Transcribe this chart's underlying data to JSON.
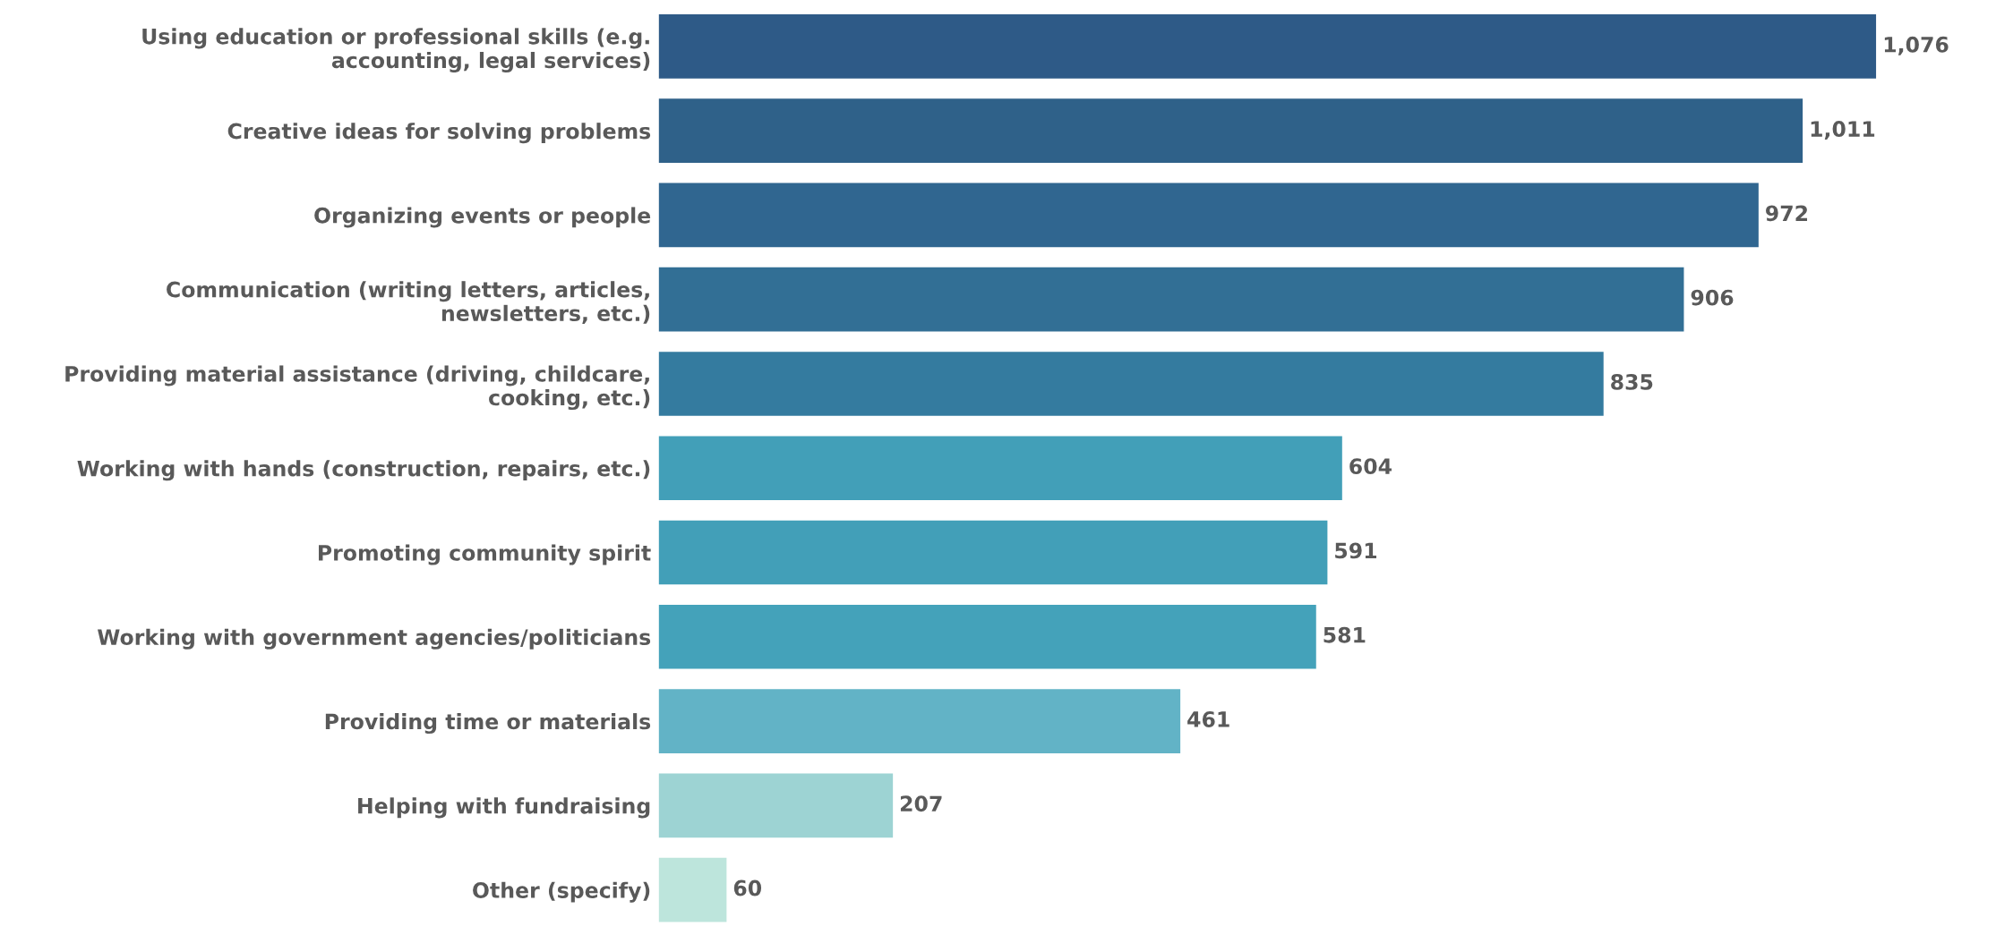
{
  "chart_data": {
    "type": "bar",
    "orientation": "horizontal",
    "categories": [
      "Using education or professional skills (e.g.\naccounting, legal services)",
      "Creative ideas for solving problems",
      "Organizing events or people",
      "Communication (writing letters, articles,\nnewsletters, etc.)",
      "Providing material assistance (driving, childcare,\ncooking, etc.)",
      "Working with hands (construction, repairs, etc.)",
      "Promoting community spirit",
      "Working with government agencies/politicians",
      "Providing time or materials",
      "Helping with fundraising",
      "Other (specify)"
    ],
    "values": [
      1076,
      1011,
      972,
      906,
      835,
      604,
      591,
      581,
      461,
      207,
      60
    ],
    "value_labels": [
      "1,076",
      "1,011",
      "972",
      "906",
      "835",
      "604",
      "591",
      "581",
      "461",
      "207",
      "60"
    ],
    "colors": [
      "#2e5a87",
      "#2f6189",
      "#306690",
      "#326f95",
      "#347b9f",
      "#429fb8",
      "#429fb8",
      "#44a2ba",
      "#62b3c6",
      "#9dd3d3",
      "#bde5dc"
    ]
  }
}
